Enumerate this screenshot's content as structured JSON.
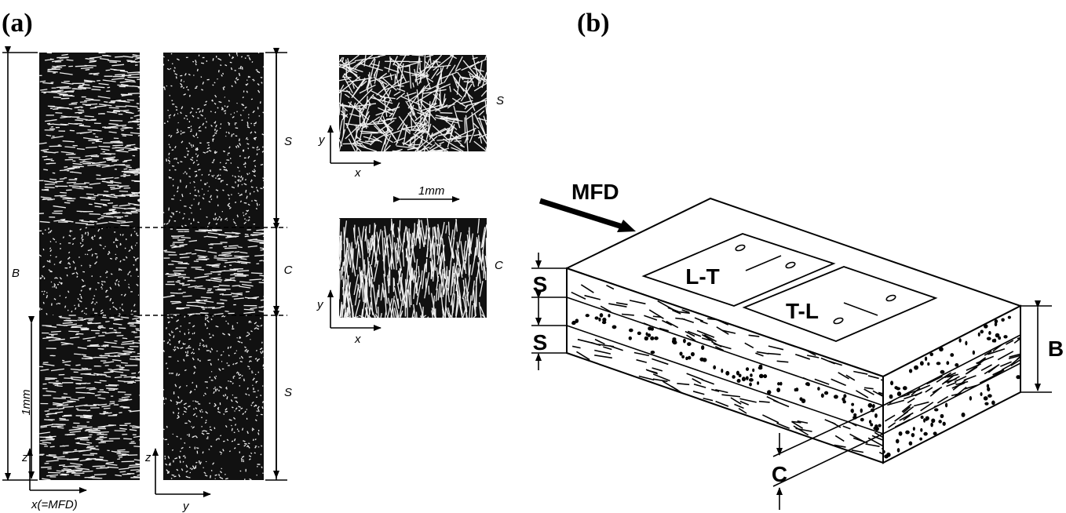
{
  "panel_a": {
    "label": "(a)",
    "thickness_label": "B",
    "layer_labels": [
      "S",
      "C",
      "S"
    ],
    "vertical_scale": "1mm",
    "section_xz_axes": [
      "z",
      "x(=MFD)"
    ],
    "section_yz_axes": [
      "z",
      "y"
    ],
    "plan_views": [
      {
        "layer": "S",
        "axes": [
          "y",
          "x"
        ]
      },
      {
        "layer": "C",
        "axes": [
          "y",
          "x"
        ]
      }
    ],
    "horizontal_scale": "1mm"
  },
  "panel_b": {
    "label": "(b)",
    "flow_direction": "MFD",
    "specimens": [
      "L-T",
      "T-L"
    ],
    "layer_labels": [
      "S",
      "S",
      "C"
    ],
    "thickness_label": "B"
  }
}
